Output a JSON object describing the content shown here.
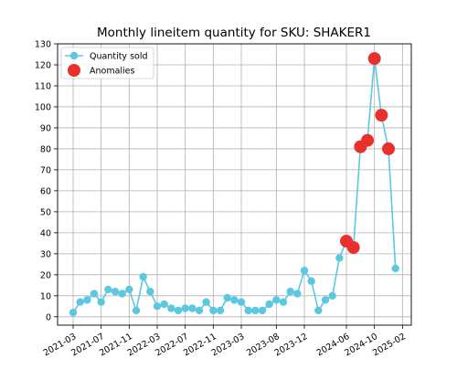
{
  "chart_data": {
    "type": "line",
    "title": "Monthly lineitem quantity for SKU: SHAKER1",
    "xlabel": "",
    "ylabel": "",
    "ylim": [
      -4,
      130
    ],
    "yticks": [
      0,
      10,
      20,
      30,
      40,
      50,
      60,
      70,
      80,
      90,
      100,
      110,
      120,
      130
    ],
    "xticks": [
      "2021-03",
      "2021-07",
      "2021-11",
      "2022-03",
      "2022-07",
      "2022-11",
      "2023-03",
      "2023-08",
      "2023-12",
      "2024-06",
      "2024-10",
      "2025-02"
    ],
    "grid": true,
    "legend_position": "top-left",
    "series": [
      {
        "name": "Quantity sold",
        "kind": "line-with-markers",
        "color": "#5bc8e0",
        "x": [
          "2021-03",
          "2021-04",
          "2021-05",
          "2021-06",
          "2021-07",
          "2021-08",
          "2021-09",
          "2021-10",
          "2021-11",
          "2021-12",
          "2022-01",
          "2022-02",
          "2022-03",
          "2022-04",
          "2022-05",
          "2022-06",
          "2022-07",
          "2022-08",
          "2022-09",
          "2022-10",
          "2022-11",
          "2022-12",
          "2023-01",
          "2023-02",
          "2023-03",
          "2023-04",
          "2023-05",
          "2023-06",
          "2023-07",
          "2023-08",
          "2023-09",
          "2023-10",
          "2023-11",
          "2023-12",
          "2024-01",
          "2024-02",
          "2024-03",
          "2024-04",
          "2024-05",
          "2024-06",
          "2024-07",
          "2024-08",
          "2024-09",
          "2024-10",
          "2024-11",
          "2024-12",
          "2025-01"
        ],
        "y": [
          2,
          7,
          8,
          11,
          7,
          13,
          12,
          11,
          13,
          3,
          19,
          12,
          5,
          6,
          4,
          3,
          4,
          4,
          3,
          7,
          3,
          3,
          9,
          8,
          7,
          3,
          3,
          3,
          6,
          8,
          7,
          12,
          11,
          22,
          17,
          3,
          8,
          10,
          28,
          36,
          33,
          81,
          84,
          123,
          96,
          80,
          23
        ]
      },
      {
        "name": "Anomalies",
        "kind": "scatter",
        "color": "#e8302c",
        "x": [
          "2024-06",
          "2024-07",
          "2024-08",
          "2024-09",
          "2024-10",
          "2024-11",
          "2024-12"
        ],
        "y": [
          36,
          33,
          81,
          84,
          123,
          96,
          80
        ]
      }
    ]
  }
}
